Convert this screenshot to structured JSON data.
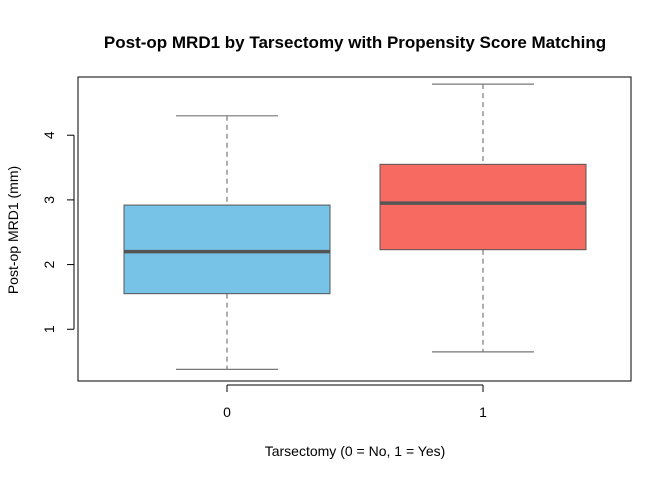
{
  "chart_data": {
    "type": "boxplot",
    "title": "Post-op MRD1 by Tarsectomy with Propensity Score Matching",
    "xlabel": "Tarsectomy (0 = No, 1 = Yes)",
    "ylabel": "Post-op MRD1 (mm)",
    "categories": [
      "0",
      "1"
    ],
    "ylim": [
      0.2,
      4.9
    ],
    "yticks": [
      1,
      2,
      3,
      4
    ],
    "grid": false,
    "legend": "none",
    "boxes": [
      {
        "category": "0",
        "min": 0.38,
        "q1": 1.55,
        "median": 2.2,
        "q3": 2.92,
        "max": 4.3,
        "color": "#77c3e8"
      },
      {
        "category": "1",
        "min": 0.65,
        "q1": 2.23,
        "median": 2.95,
        "q3": 3.55,
        "max": 4.79,
        "color": "#f76a62"
      }
    ],
    "colors": {
      "median_line": "#555555",
      "whisker": "#777777",
      "box_border": "#555555",
      "frame": "#000000"
    }
  }
}
